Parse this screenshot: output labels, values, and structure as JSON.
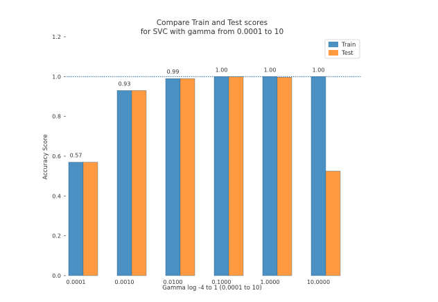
{
  "chart_data": {
    "type": "bar",
    "title": "Compare Train and Test scores",
    "subtitle": "for SVC with gamma from 0.0001 to 10",
    "xlabel": "Gamma log -4 to 1 (0.0001 to 10)",
    "ylabel": "Accuracy Score",
    "categories": [
      "0.0001",
      "0.0010",
      "0.0100",
      "0.1000",
      "1.0000",
      "10.0000"
    ],
    "series": [
      {
        "name": "Train",
        "color": "#4a90c2",
        "values": [
          0.57,
          0.93,
          0.99,
          1.0,
          1.0,
          1.0
        ]
      },
      {
        "name": "Test",
        "color": "#ff9a40",
        "values": [
          0.57,
          0.93,
          0.99,
          1.0,
          0.997,
          0.525
        ]
      }
    ],
    "data_labels": [
      "0.57",
      "0.93",
      "0.99",
      "1.00",
      "1.00",
      "1.00"
    ],
    "ylim": [
      0,
      1.2
    ],
    "yticks": [
      "0.0",
      "0.2",
      "0.4",
      "0.6",
      "0.8",
      "1.0",
      "1.2"
    ],
    "reference_line": {
      "y": 1.0,
      "color": "#1f6fb4",
      "style": "dotted"
    },
    "legend_position": "top-right",
    "grid": false
  }
}
